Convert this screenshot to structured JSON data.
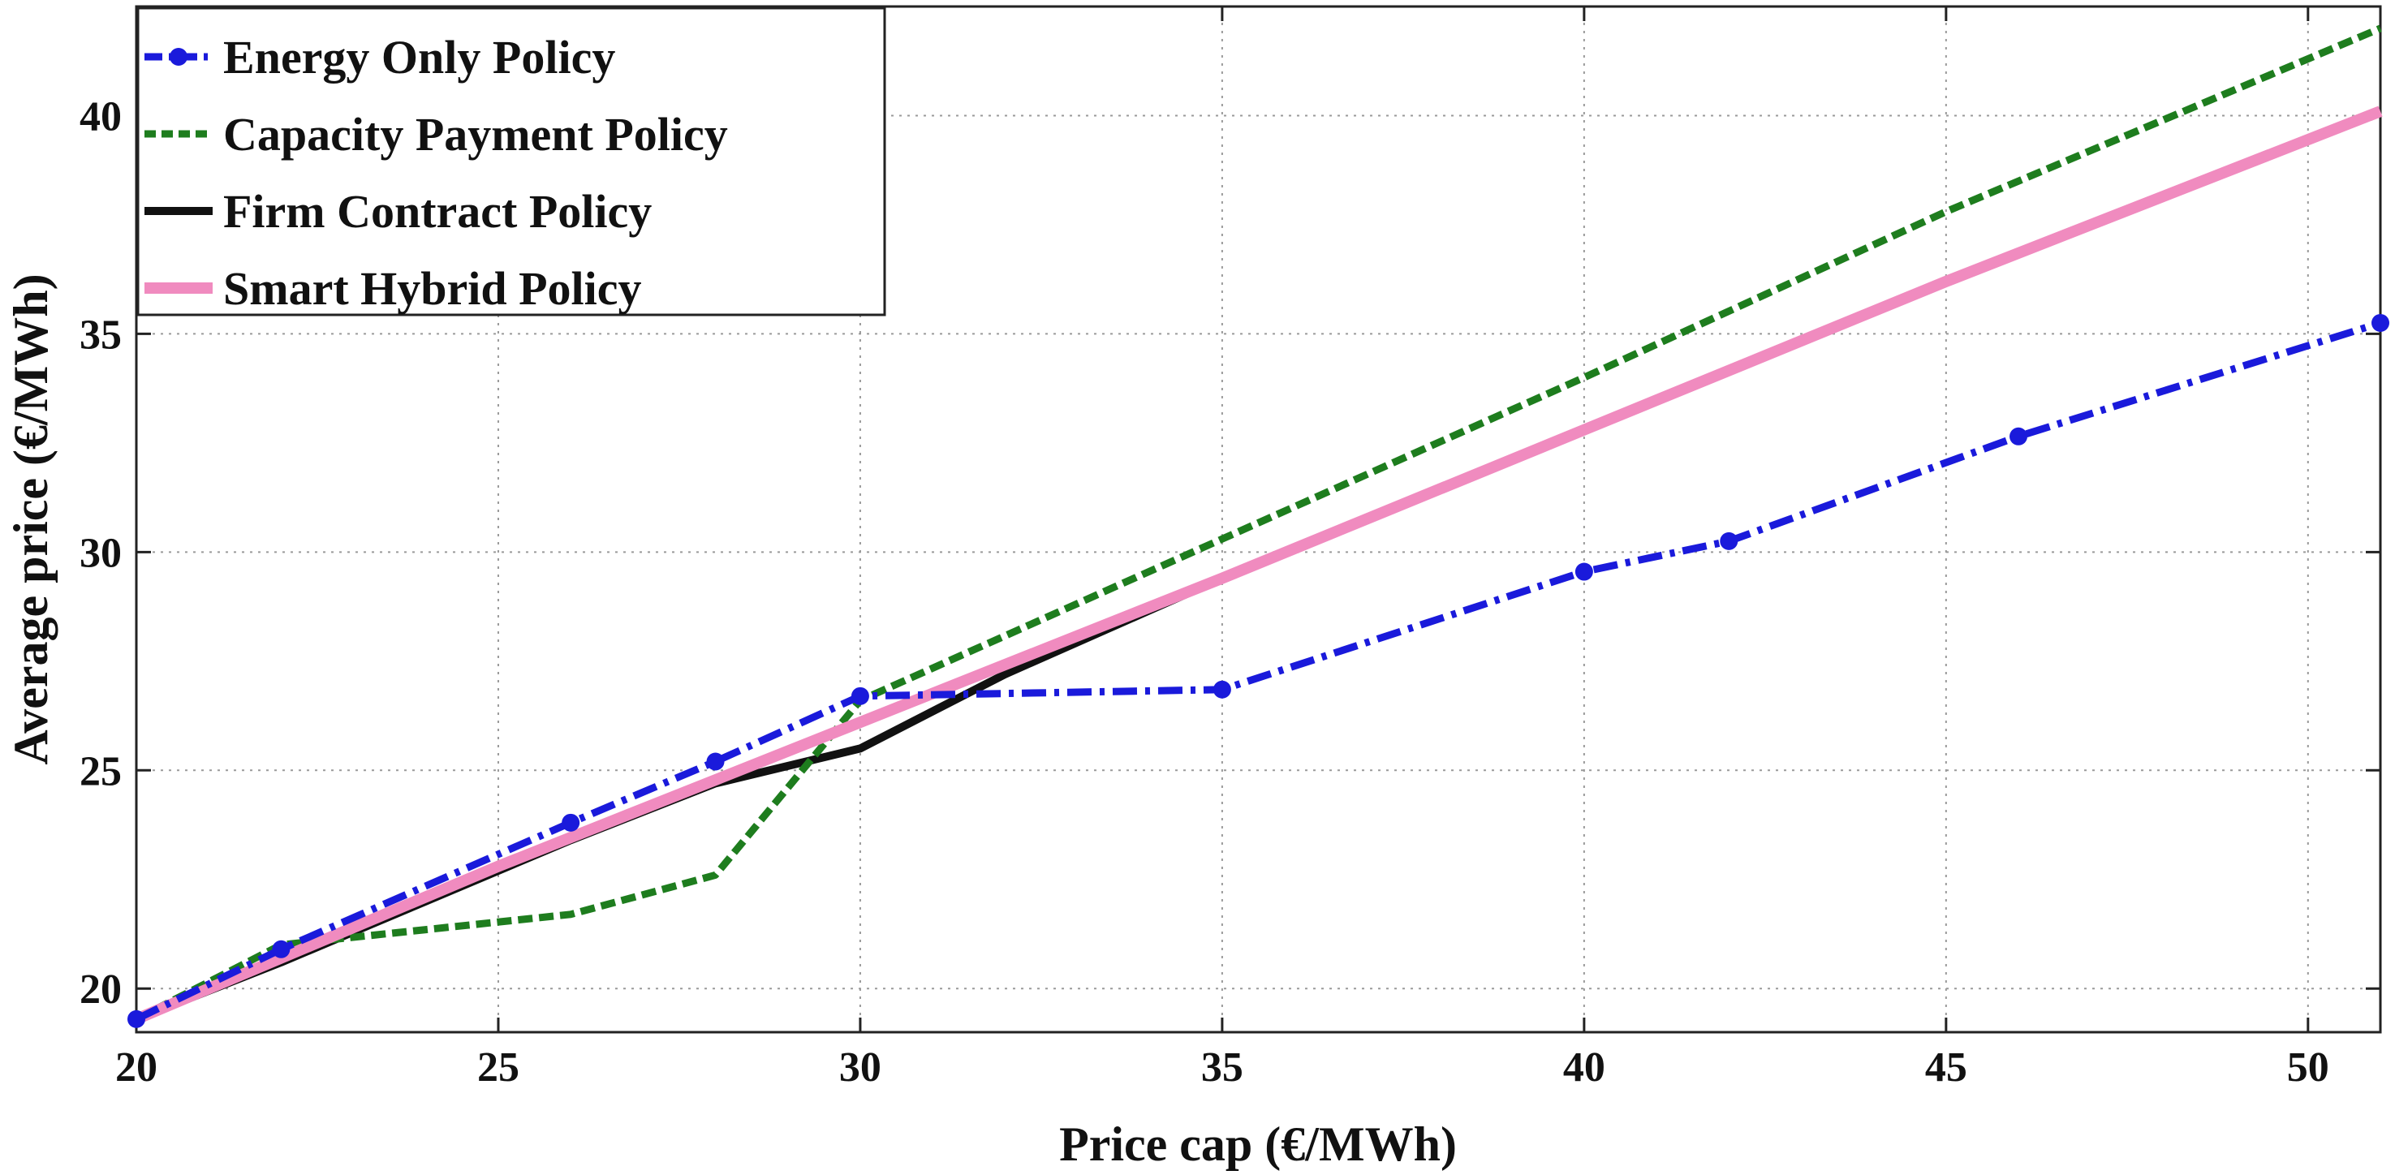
{
  "chart_data": {
    "type": "line",
    "title": "",
    "xlabel": "Price cap (€/MWh)",
    "ylabel": "Average price (€/MWh)",
    "xlim": [
      20,
      51
    ],
    "ylim": [
      19,
      42.5
    ],
    "xticks": [
      20,
      25,
      30,
      35,
      40,
      45,
      50
    ],
    "yticks": [
      20,
      25,
      30,
      35,
      40
    ],
    "grid": true,
    "legend_position": "top-left",
    "series": [
      {
        "name": "Energy Only Policy",
        "color": "#1a1adb",
        "style": "dash-dot",
        "marker": "circle",
        "x": [
          20,
          22,
          26,
          28,
          30,
          35,
          40,
          42,
          46,
          51
        ],
        "y": [
          19.3,
          20.9,
          23.8,
          25.2,
          26.7,
          26.85,
          29.55,
          30.25,
          32.65,
          35.25
        ]
      },
      {
        "name": "Capacity Payment Policy",
        "color": "#1e7d1e",
        "style": "dashed",
        "marker": "none",
        "x": [
          20,
          22,
          24,
          26,
          28,
          30,
          35,
          40,
          45,
          51
        ],
        "y": [
          19.3,
          21.0,
          21.35,
          21.7,
          22.6,
          26.6,
          30.3,
          34.0,
          37.8,
          42.0
        ]
      },
      {
        "name": "Firm Contract Policy",
        "color": "#111111",
        "style": "solid",
        "marker": "none",
        "x": [
          20,
          22,
          24,
          26,
          28,
          30,
          32,
          35
        ],
        "y": [
          19.3,
          20.6,
          22.0,
          23.4,
          24.7,
          25.5,
          27.2,
          29.4
        ]
      },
      {
        "name": "Smart Hybrid Policy",
        "color": "#f08bbf",
        "style": "solid",
        "marker": "none",
        "x": [
          20,
          25,
          30,
          35,
          40,
          45,
          51
        ],
        "y": [
          19.3,
          22.8,
          26.1,
          29.4,
          32.8,
          36.2,
          40.1
        ]
      }
    ]
  }
}
